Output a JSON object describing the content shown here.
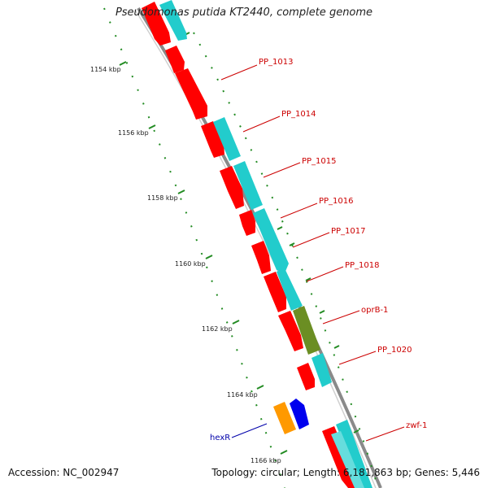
{
  "title": "Pseudomonas putida KT2440, complete genome",
  "footer": {
    "accession": "Accession: NC_002947",
    "summary": "Topology: circular; Length: 6,181,863 bp; Genes: 5,446"
  },
  "colors": {
    "backbone": "#8a8a8a",
    "cds": "#ff0000",
    "cog": "#22cccc",
    "cog_alt": "#6b8e23",
    "tick": "#228b22",
    "gene_label": "#cc0000",
    "hexR_label": "#0000aa",
    "hexR_gene": "#0000ee",
    "hexR_cog": "#ff9900"
  },
  "scale": {
    "unit": "kbp",
    "ticks": [
      "1154 kbp",
      "1156 kbp",
      "1158 kbp",
      "1160 kbp",
      "1162 kbp",
      "1164 kbp",
      "1166 kbp"
    ]
  },
  "gene_labels": [
    {
      "name": "PP_1013"
    },
    {
      "name": "PP_1014"
    },
    {
      "name": "PP_1015"
    },
    {
      "name": "PP_1016"
    },
    {
      "name": "PP_1017"
    },
    {
      "name": "PP_1018"
    },
    {
      "name": "oprB-1"
    },
    {
      "name": "PP_1020"
    },
    {
      "name": "zwf-1"
    }
  ],
  "reverse_labels": [
    {
      "name": "hexR"
    }
  ]
}
